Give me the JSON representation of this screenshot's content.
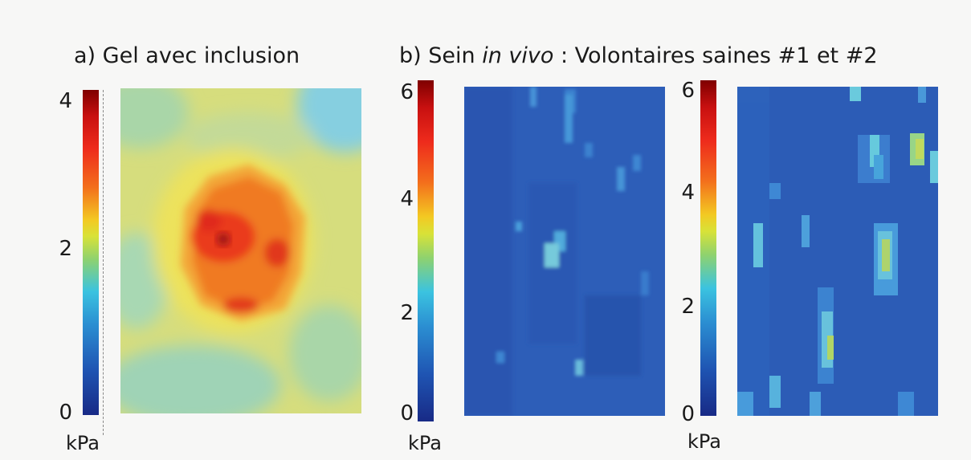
{
  "panel_a": {
    "title": "a) Gel avec inclusion",
    "ticks": [
      "4",
      "2",
      "0"
    ],
    "unit": "kPa"
  },
  "panel_b": {
    "title_prefix": "b) Sein ",
    "title_italic": "in vivo",
    "title_suffix": " : Volontaires saines #1 et #2",
    "map1": {
      "ticks": [
        "6",
        "4",
        "2",
        "0"
      ],
      "unit": "kPa"
    },
    "map2": {
      "ticks": [
        "6",
        "4",
        "2",
        "0"
      ],
      "unit": "kPa"
    }
  },
  "colors": {
    "gel_background": "#d7de7a",
    "inclusion": "#f08a2a",
    "breast_background": "#2a58b0"
  }
}
